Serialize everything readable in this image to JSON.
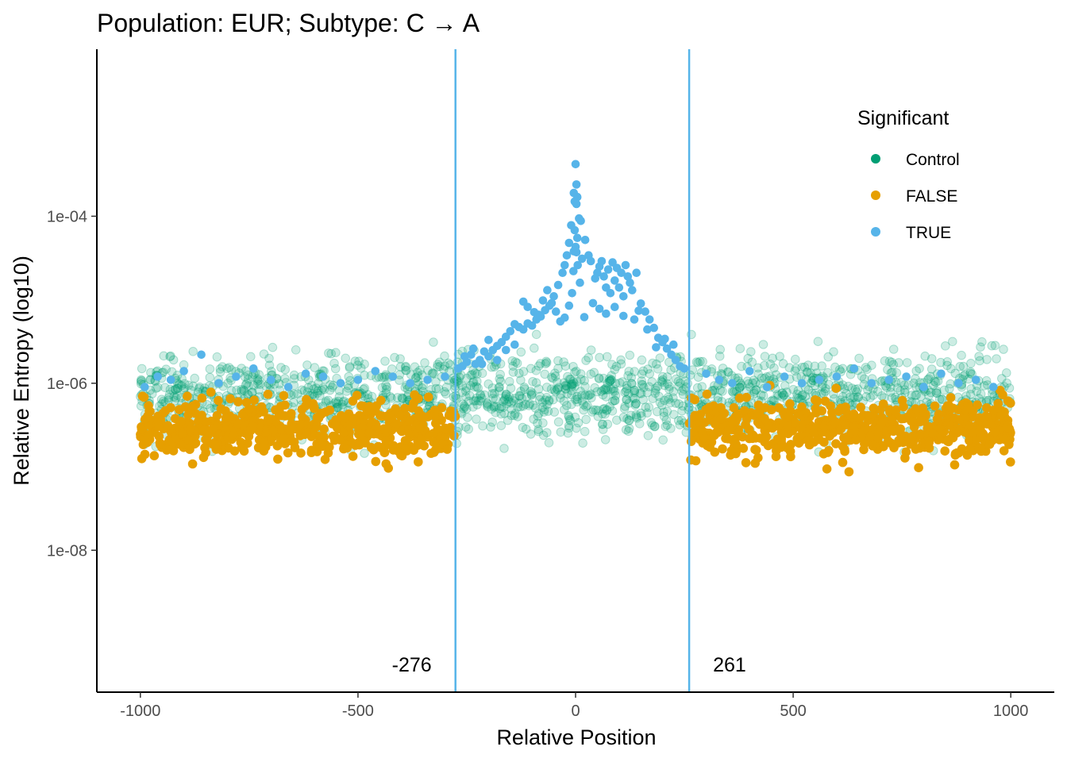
{
  "chart_data": {
    "type": "scatter",
    "title": "Population: EUR; Subtype: C → A",
    "xlabel": "Relative Position",
    "ylabel": "Relative Entropy (log10)",
    "x_scale": "linear",
    "y_scale": "log10",
    "xlim": [
      -1100,
      1100
    ],
    "ylim": [
      2e-10,
      0.01
    ],
    "x_ticks": [
      {
        "value": -1000,
        "label": "-1000"
      },
      {
        "value": -500,
        "label": "-500"
      },
      {
        "value": 0,
        "label": "0"
      },
      {
        "value": 500,
        "label": "500"
      },
      {
        "value": 1000,
        "label": "1000"
      }
    ],
    "y_ticks": [
      {
        "value": 1e-08,
        "label": "1e-08"
      },
      {
        "value": 1e-06,
        "label": "1e-06"
      },
      {
        "value": 0.0001,
        "label": "1e-04"
      }
    ],
    "grid": false,
    "legend": {
      "title": "Significant",
      "position": "top-right",
      "entries": [
        {
          "label": "Control",
          "color": "#009E73"
        },
        {
          "label": "FALSE",
          "color": "#E69F00"
        },
        {
          "label": "TRUE",
          "color": "#56B4E9"
        }
      ]
    },
    "vlines": [
      {
        "x": -276,
        "label": "-276",
        "color": "#56B4E9"
      },
      {
        "x": 261,
        "label": "261",
        "color": "#56B4E9"
      }
    ],
    "series": [
      {
        "legend_index": 2,
        "color": "#56B4E9",
        "opacity": 1.0,
        "points": [
          [
            0,
            0.00042
          ],
          [
            2,
            0.00024
          ],
          [
            -4,
            0.00019
          ],
          [
            4,
            0.00017
          ],
          [
            -2,
            0.00015
          ],
          [
            2,
            0.00014
          ],
          [
            -2,
            6.8e-05
          ],
          [
            4,
            5.5e-05
          ],
          [
            0,
            4.3e-05
          ],
          [
            -4,
            3.8e-05
          ],
          [
            2,
            3.7e-05
          ],
          [
            5,
            2.6e-05
          ],
          [
            -5,
            2.2e-05
          ],
          [
            8,
            9.4e-05
          ],
          [
            12,
            8.8e-05
          ],
          [
            -10,
            7.8e-05
          ],
          [
            -15,
            4.8e-05
          ],
          [
            22,
            5.2e-05
          ],
          [
            -20,
            3.4e-05
          ],
          [
            30,
            3.4e-05
          ],
          [
            -25,
            2.6e-05
          ],
          [
            -30,
            2.1e-05
          ],
          [
            35,
            2.9e-05
          ],
          [
            15,
            3.1e-05
          ],
          [
            -8,
            1.2e-05
          ],
          [
            10,
            1.6e-05
          ],
          [
            -40,
            1.5e-05
          ],
          [
            45,
            1.8e-05
          ],
          [
            50,
            2.1e-05
          ],
          [
            55,
            2.5e-05
          ],
          [
            -50,
            1.1e-05
          ],
          [
            60,
            2.9e-05
          ],
          [
            65,
            1.9e-05
          ],
          [
            -60,
            8.5e-06
          ],
          [
            70,
            1.4e-05
          ],
          [
            75,
            2.3e-05
          ],
          [
            -70,
            7.5e-06
          ],
          [
            80,
            1.2e-05
          ],
          [
            85,
            2.8e-05
          ],
          [
            -80,
            6.3e-06
          ],
          [
            90,
            1.7e-05
          ],
          [
            95,
            2.4e-05
          ],
          [
            -90,
            5.8e-06
          ],
          [
            100,
            1.4e-05
          ],
          [
            105,
            2.1e-05
          ],
          [
            -100,
            4.9e-06
          ],
          [
            110,
            1.1e-05
          ],
          [
            115,
            2.6e-05
          ],
          [
            -110,
            5.2e-06
          ],
          [
            120,
            1.9e-05
          ],
          [
            125,
            1.6e-05
          ],
          [
            -120,
            4.4e-06
          ],
          [
            130,
            1.3e-05
          ],
          [
            140,
            2.1e-05
          ],
          [
            -130,
            4.7e-06
          ],
          [
            150,
            9e-06
          ],
          [
            160,
            7.2e-06
          ],
          [
            -140,
            5.1e-06
          ],
          [
            170,
            5.8e-06
          ],
          [
            180,
            4.6e-06
          ],
          [
            -150,
            4.2e-06
          ],
          [
            190,
            3.5e-06
          ],
          [
            200,
            3.1e-06
          ],
          [
            -160,
            3.6e-06
          ],
          [
            210,
            2.6e-06
          ],
          [
            220,
            2.2e-06
          ],
          [
            -170,
            3.1e-06
          ],
          [
            230,
            1.9e-06
          ],
          [
            240,
            1.6e-06
          ],
          [
            -180,
            2.8e-06
          ],
          [
            250,
            1.5e-06
          ],
          [
            -190,
            2.5e-06
          ],
          [
            -200,
            2.1e-06
          ],
          [
            -210,
            2.4e-06
          ],
          [
            -220,
            1.9e-06
          ],
          [
            -230,
            1.7e-06
          ],
          [
            -240,
            2.2e-06
          ],
          [
            -250,
            1.8e-06
          ],
          [
            -260,
            1.6e-06
          ],
          [
            -270,
            1.5e-06
          ],
          [
            -120,
            9.5e-06
          ],
          [
            -110,
            8.2e-06
          ],
          [
            -95,
            7.1e-06
          ],
          [
            -85,
            6.6e-06
          ],
          [
            -75,
            9.8e-06
          ],
          [
            -65,
            1.3e-05
          ],
          [
            -55,
            9.1e-06
          ],
          [
            -45,
            7.2e-06
          ],
          [
            -35,
            5.5e-06
          ],
          [
            -25,
            6.1e-06
          ],
          [
            -15,
            8.5e-06
          ],
          [
            20,
            6.2e-06
          ],
          [
            40,
            9.1e-06
          ],
          [
            55,
            7.8e-06
          ],
          [
            70,
            6.8e-06
          ],
          [
            90,
            8.2e-06
          ],
          [
            110,
            6.4e-06
          ],
          [
            135,
            5.8e-06
          ],
          [
            145,
            7.4e-06
          ],
          [
            165,
            4.4e-06
          ],
          [
            185,
            2.7e-06
          ],
          [
            205,
            3.4e-06
          ],
          [
            225,
            2.9e-06
          ],
          [
            -140,
            2.9e-06
          ],
          [
            -160,
            2.5e-06
          ],
          [
            -180,
            1.9e-06
          ],
          [
            -200,
            3.3e-06
          ],
          [
            -215,
            1.7e-06
          ],
          [
            -235,
            2.6e-06
          ],
          [
            -255,
            2.1e-06
          ],
          [
            -990,
            9e-07
          ],
          [
            -960,
            1.2e-06
          ],
          [
            -930,
            1.1e-06
          ],
          [
            -900,
            1.4e-06
          ],
          [
            -860,
            2.2e-06
          ],
          [
            -820,
            1e-06
          ],
          [
            -780,
            1.2e-06
          ],
          [
            -740,
            1.5e-06
          ],
          [
            -700,
            1.1e-06
          ],
          [
            -660,
            9e-07
          ],
          [
            -620,
            1.3e-06
          ],
          [
            -580,
            1.2e-06
          ],
          [
            -540,
            1e-06
          ],
          [
            -500,
            1.1e-06
          ],
          [
            -460,
            1.4e-06
          ],
          [
            -420,
            1.2e-06
          ],
          [
            -380,
            1e-06
          ],
          [
            -340,
            1.1e-06
          ],
          [
            -300,
            1.2e-06
          ],
          [
            300,
            1.3e-06
          ],
          [
            330,
            1.1e-06
          ],
          [
            360,
            1e-06
          ],
          [
            400,
            1.4e-06
          ],
          [
            440,
            9e-07
          ],
          [
            480,
            1.2e-06
          ],
          [
            520,
            1e-06
          ],
          [
            560,
            1.1e-06
          ],
          [
            600,
            1.2e-06
          ],
          [
            640,
            1.5e-06
          ],
          [
            680,
            1e-06
          ],
          [
            720,
            1.1e-06
          ],
          [
            760,
            1.2e-06
          ],
          [
            800,
            9e-07
          ],
          [
            840,
            1.3e-06
          ],
          [
            880,
            1e-06
          ],
          [
            920,
            1.1e-06
          ],
          [
            960,
            9e-07
          ]
        ]
      }
    ],
    "generated_series": [
      {
        "legend_index": 0,
        "color": "#009E73",
        "opacity": 0.2,
        "count": 1700,
        "x_range": [
          -1000,
          1000
        ],
        "log10_center": -6.15,
        "log10_spread": 0.5,
        "log10_min": -9.3,
        "log10_max": -5.35
      },
      {
        "legend_index": 1,
        "color": "#E69F00",
        "opacity": 1.0,
        "count": 1100,
        "x_ranges": [
          [
            -1000,
            -276
          ],
          [
            261,
            1000
          ]
        ],
        "log10_center": -6.55,
        "log10_spread": 0.35,
        "log10_min": -9.7,
        "log10_max": -6.0
      }
    ]
  }
}
